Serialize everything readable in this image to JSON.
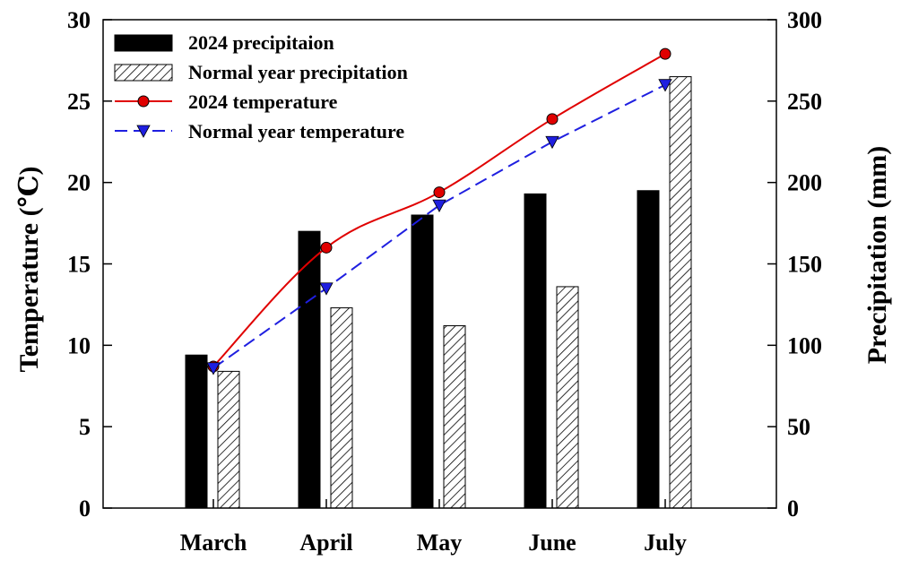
{
  "chart_data": {
    "type": "bar",
    "categories": [
      "March",
      "April",
      "May",
      "June",
      "July"
    ],
    "series": [
      {
        "name": "2024 precipitaion",
        "kind": "bar",
        "axis": "right",
        "color": "#000000",
        "pattern": "solid",
        "values": [
          94,
          170,
          180,
          193,
          195
        ]
      },
      {
        "name": "Normal year precipitation",
        "kind": "bar",
        "axis": "right",
        "color": "#000000",
        "pattern": "hatch",
        "values": [
          84,
          123,
          112,
          136,
          265
        ]
      },
      {
        "name": "2024 temperature",
        "kind": "line",
        "axis": "left",
        "color": "#e00000",
        "marker": "circle",
        "dash": "solid",
        "values": [
          8.7,
          16.0,
          19.4,
          23.9,
          27.9
        ]
      },
      {
        "name": "Normal year temperature",
        "kind": "line",
        "axis": "left",
        "color": "#1f1fe0",
        "marker": "triangle-down",
        "dash": "dashed",
        "values": [
          8.6,
          13.5,
          18.6,
          22.5,
          26.0
        ]
      }
    ],
    "ylabel_left": "Temperature (℃)",
    "ylabel_right": "Precipitation (mm)",
    "ylim_left": [
      0,
      30
    ],
    "ylim_right": [
      0,
      300
    ],
    "yticks_left": [
      "0",
      "5",
      "10",
      "15",
      "20",
      "25",
      "30"
    ],
    "yticks_right": [
      "0",
      "50",
      "100",
      "150",
      "200",
      "250",
      "300"
    ],
    "grid": false,
    "legend_position": "top-left"
  }
}
